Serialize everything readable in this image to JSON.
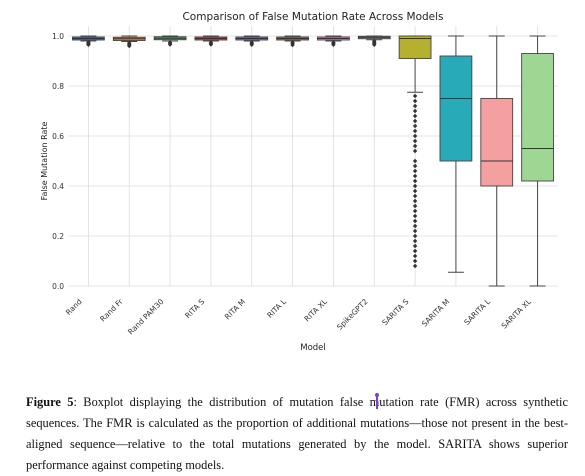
{
  "chart_data": {
    "type": "boxplot",
    "title": "Comparison of False Mutation Rate Across Models",
    "xlabel": "Model",
    "ylabel": "False Mutation Rate",
    "ylim": [
      0.0,
      1.0
    ],
    "yticks": [
      "0.0",
      "0.2",
      "0.4",
      "0.6",
      "0.8",
      "1.0"
    ],
    "grid": true,
    "categories": [
      "Rand",
      "Rand Fr",
      "Rand PAM30",
      "RITA S",
      "RITA M",
      "RITA L",
      "RITA XL",
      "SpikeGPT2",
      "SARITA S",
      "SARITA M",
      "SARITA L",
      "SARITA XL"
    ],
    "series": [
      {
        "category": "Rand",
        "color": "#4c72b0",
        "whisker_low": 0.98,
        "q1": 0.984,
        "median": 0.99,
        "q3": 0.996,
        "whisker_high": 1.0,
        "outliers": [
          0.975,
          0.972,
          0.968,
          0.965
        ]
      },
      {
        "category": "Rand Fr",
        "color": "#dd8452",
        "whisker_low": 0.978,
        "q1": 0.982,
        "median": 0.989,
        "q3": 0.995,
        "whisker_high": 1.0,
        "outliers": [
          0.972,
          0.968,
          0.964,
          0.96
        ]
      },
      {
        "category": "Rand PAM30",
        "color": "#55a868",
        "whisker_low": 0.98,
        "q1": 0.985,
        "median": 0.991,
        "q3": 0.997,
        "whisker_high": 1.0,
        "outliers": [
          0.974,
          0.97,
          0.966
        ]
      },
      {
        "category": "RITA S",
        "color": "#c44e52",
        "whisker_low": 0.98,
        "q1": 0.984,
        "median": 0.99,
        "q3": 0.996,
        "whisker_high": 1.0,
        "outliers": [
          0.974,
          0.97,
          0.966
        ]
      },
      {
        "category": "RITA M",
        "color": "#8172b3",
        "whisker_low": 0.98,
        "q1": 0.984,
        "median": 0.99,
        "q3": 0.996,
        "whisker_high": 1.0,
        "outliers": [
          0.974,
          0.97,
          0.965
        ]
      },
      {
        "category": "RITA L",
        "color": "#937860",
        "whisker_low": 0.98,
        "q1": 0.984,
        "median": 0.99,
        "q3": 0.996,
        "whisker_high": 1.0,
        "outliers": [
          0.974,
          0.969,
          0.964
        ]
      },
      {
        "category": "RITA XL",
        "color": "#da8bc3",
        "whisker_low": 0.98,
        "q1": 0.984,
        "median": 0.99,
        "q3": 0.996,
        "whisker_high": 1.0,
        "outliers": [
          0.974,
          0.97,
          0.965
        ]
      },
      {
        "category": "SpikeGPT2",
        "color": "#8c8c8c",
        "whisker_low": 0.985,
        "q1": 0.99,
        "median": 0.995,
        "q3": 0.999,
        "whisker_high": 1.0,
        "outliers": [
          0.98,
          0.975,
          0.97,
          0.965
        ]
      },
      {
        "category": "SARITA S",
        "color": "#b5b02e",
        "whisker_low": 0.775,
        "q1": 0.91,
        "median": 0.99,
        "q3": 1.0,
        "whisker_high": 1.0,
        "outliers": [
          0.76,
          0.74,
          0.72,
          0.7,
          0.68,
          0.66,
          0.64,
          0.62,
          0.6,
          0.58,
          0.56,
          0.54,
          0.5,
          0.48,
          0.46,
          0.44,
          0.42,
          0.4,
          0.38,
          0.36,
          0.34,
          0.32,
          0.3,
          0.28,
          0.26,
          0.24,
          0.22,
          0.2,
          0.18,
          0.16,
          0.14,
          0.12,
          0.1,
          0.08
        ]
      },
      {
        "category": "SARITA M",
        "color": "#29aab8",
        "whisker_low": 0.055,
        "q1": 0.5,
        "median": 0.75,
        "q3": 0.92,
        "whisker_high": 1.0,
        "outliers": []
      },
      {
        "category": "SARITA L",
        "color": "#f4a0a0",
        "whisker_low": 0.0,
        "q1": 0.4,
        "median": 0.5,
        "q3": 0.75,
        "whisker_high": 1.0,
        "outliers": []
      },
      {
        "category": "SARITA XL",
        "color": "#9ed694",
        "whisker_low": 0.0,
        "q1": 0.42,
        "median": 0.55,
        "q3": 0.93,
        "whisker_high": 1.0,
        "outliers": []
      }
    ]
  },
  "caption": {
    "label": "Figure 5",
    "text": ": Boxplot displaying the distribution of mutation false mutation rate (FMR) across synthetic sequences. The FMR is calculated as the proportion of additional mutations—those not present in the best-aligned sequence—relative to the total mutations generated by the model. SARITA shows superior performance against competing models."
  }
}
